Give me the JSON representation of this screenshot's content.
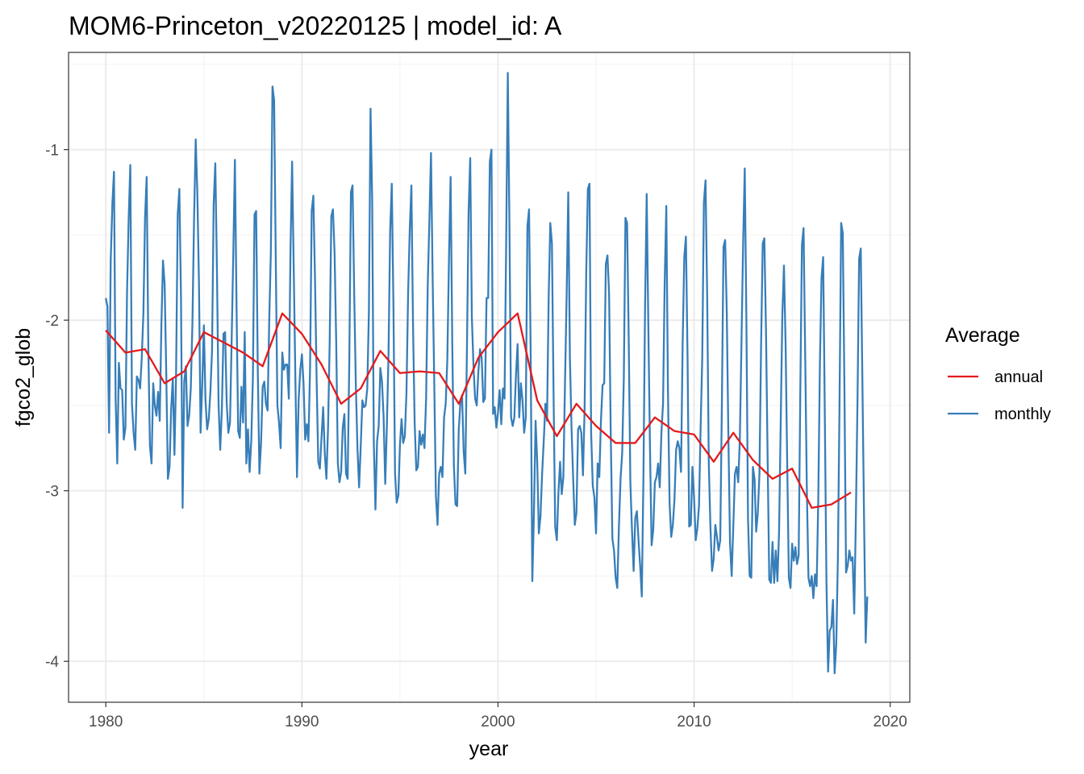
{
  "chart_data": {
    "type": "line",
    "title": "MOM6-Princeton_v20220125 | model_id: A",
    "xlabel": "year",
    "ylabel": "fgco2_glob",
    "xlim": [
      1978.1,
      2021.0
    ],
    "ylim": [
      -4.24,
      -0.43
    ],
    "x_ticks": [
      1980,
      1990,
      2000,
      2010,
      2020
    ],
    "y_ticks": [
      -4,
      -3,
      -2,
      -1
    ],
    "grid": true,
    "legend": {
      "title": "Average",
      "position": "right"
    },
    "series": [
      {
        "name": "annual",
        "color": "#e41a1c",
        "x": [
          1980,
          1981,
          1982,
          1983,
          1984,
          1985,
          1986,
          1987,
          1988,
          1989,
          1990,
          1991,
          1992,
          1993,
          1994,
          1995,
          1996,
          1997,
          1998,
          1999,
          2000,
          2001,
          2002,
          2003,
          2004,
          2005,
          2006,
          2007,
          2008,
          2009,
          2010,
          2011,
          2012,
          2013,
          2014,
          2015,
          2016,
          2017,
          2018
        ],
        "values": [
          -2.06,
          -2.19,
          -2.17,
          -2.37,
          -2.3,
          -2.07,
          -2.13,
          -2.19,
          -2.27,
          -1.96,
          -2.08,
          -2.26,
          -2.49,
          -2.4,
          -2.18,
          -2.31,
          -2.3,
          -2.31,
          -2.49,
          -2.22,
          -2.07,
          -1.96,
          -2.47,
          -2.68,
          -2.49,
          -2.62,
          -2.72,
          -2.72,
          -2.57,
          -2.65,
          -2.67,
          -2.83,
          -2.66,
          -2.82,
          -2.93,
          -2.87,
          -3.1,
          -3.08,
          -3.01
        ]
      },
      {
        "name": "monthly",
        "color": "#377eb8",
        "x_start": 1980.0,
        "x_step": 0.08333333,
        "values": [
          -1.87,
          -1.92,
          -2.66,
          -1.65,
          -1.32,
          -1.13,
          -2.46,
          -2.84,
          -2.25,
          -2.4,
          -2.41,
          -2.7,
          -2.63,
          -1.83,
          -1.4,
          -1.09,
          -2.49,
          -2.66,
          -2.76,
          -2.33,
          -2.35,
          -2.4,
          -2.22,
          -1.96,
          -1.4,
          -1.16,
          -2.15,
          -2.74,
          -2.84,
          -2.37,
          -2.5,
          -2.56,
          -2.42,
          -2.59,
          -2.03,
          -1.65,
          -1.79,
          -2.32,
          -2.93,
          -2.86,
          -2.52,
          -2.34,
          -2.79,
          -2.32,
          -1.38,
          -1.23,
          -1.86,
          -3.1,
          -2.36,
          -2.27,
          -2.62,
          -2.56,
          -2.4,
          -2.02,
          -1.41,
          -0.94,
          -1.25,
          -1.78,
          -2.66,
          -2.38,
          -2.03,
          -2.47,
          -2.64,
          -2.58,
          -2.42,
          -2.18,
          -1.32,
          -1.08,
          -1.7,
          -2.49,
          -2.76,
          -2.53,
          -2.08,
          -2.07,
          -2.49,
          -2.66,
          -2.6,
          -2.12,
          -1.62,
          -1.06,
          -1.92,
          -2.65,
          -2.69,
          -2.39,
          -2.6,
          -2.07,
          -2.84,
          -2.64,
          -2.89,
          -2.71,
          -2.34,
          -1.38,
          -1.36,
          -2.29,
          -2.9,
          -2.72,
          -2.39,
          -2.36,
          -2.49,
          -2.53,
          -2.0,
          -1.6,
          -0.63,
          -0.71,
          -1.64,
          -2.5,
          -2.6,
          -2.75,
          -2.19,
          -2.29,
          -2.26,
          -2.26,
          -2.46,
          -1.6,
          -1.07,
          -1.7,
          -2.34,
          -2.92,
          -2.47,
          -2.29,
          -2.2,
          -2.37,
          -2.7,
          -2.61,
          -2.71,
          -2.28,
          -1.36,
          -1.27,
          -1.75,
          -2.34,
          -2.83,
          -2.87,
          -2.69,
          -2.51,
          -2.78,
          -2.93,
          -2.63,
          -2.13,
          -1.39,
          -1.35,
          -1.61,
          -2.13,
          -2.84,
          -2.95,
          -2.89,
          -2.63,
          -2.55,
          -2.9,
          -2.93,
          -2.24,
          -1.25,
          -1.21,
          -1.84,
          -2.38,
          -2.75,
          -2.98,
          -2.74,
          -2.47,
          -2.51,
          -2.5,
          -2.4,
          -1.95,
          -0.76,
          -1.29,
          -2.72,
          -3.11,
          -2.71,
          -2.62,
          -2.28,
          -2.36,
          -2.57,
          -2.96,
          -2.62,
          -2.2,
          -1.48,
          -1.2,
          -1.9,
          -2.9,
          -3.07,
          -3.03,
          -2.73,
          -2.58,
          -2.72,
          -2.68,
          -2.42,
          -1.84,
          -1.47,
          -1.21,
          -2.03,
          -2.6,
          -2.88,
          -2.86,
          -2.65,
          -2.73,
          -2.67,
          -2.75,
          -2.46,
          -1.8,
          -1.42,
          -1.02,
          -1.75,
          -2.37,
          -3.03,
          -3.2,
          -2.9,
          -2.86,
          -2.92,
          -2.57,
          -2.49,
          -2.23,
          -1.64,
          -1.16,
          -2.12,
          -2.85,
          -3.08,
          -3.09,
          -2.64,
          -2.48,
          -2.44,
          -2.77,
          -2.9,
          -2.16,
          -1.37,
          -1.05,
          -1.98,
          -2.27,
          -2.46,
          -2.5,
          -2.3,
          -2.17,
          -2.22,
          -2.48,
          -2.46,
          -1.87,
          -1.87,
          -1.07,
          -1.0,
          -2.55,
          -2.51,
          -2.63,
          -2.54,
          -2.41,
          -2.61,
          -2.4,
          -2.46,
          -1.55,
          -0.55,
          -1.44,
          -2.57,
          -2.62,
          -2.57,
          -2.32,
          -2.14,
          -2.57,
          -2.37,
          -2.47,
          -2.66,
          -2.57,
          -1.45,
          -1.35,
          -2.19,
          -3.53,
          -3.13,
          -2.59,
          -2.83,
          -3.25,
          -3.15,
          -2.9,
          -2.71,
          -2.49,
          -2.59,
          -1.87,
          -1.43,
          -1.55,
          -2.43,
          -3.21,
          -3.29,
          -3.01,
          -2.83,
          -3.02,
          -2.92,
          -2.37,
          -1.86,
          -1.25,
          -2.22,
          -2.63,
          -2.93,
          -3.2,
          -3.13,
          -2.64,
          -2.62,
          -2.66,
          -2.91,
          -2.52,
          -1.72,
          -1.23,
          -1.2,
          -2.66,
          -2.97,
          -3.04,
          -3.25,
          -2.84,
          -2.92,
          -2.59,
          -2.38,
          -2.37,
          -1.67,
          -1.62,
          -1.85,
          -2.67,
          -3.28,
          -3.35,
          -3.51,
          -3.57,
          -3.21,
          -2.93,
          -2.78,
          -2.34,
          -1.4,
          -1.43,
          -2.11,
          -2.95,
          -3.23,
          -3.47,
          -3.16,
          -3.12,
          -3.29,
          -3.44,
          -3.62,
          -2.92,
          -1.92,
          -1.26,
          -2.04,
          -2.74,
          -3.32,
          -3.23,
          -2.95,
          -2.92,
          -2.84,
          -2.98,
          -2.66,
          -2.49,
          -1.78,
          -1.33,
          -2.41,
          -3.07,
          -3.27,
          -3.2,
          -3.05,
          -2.76,
          -2.71,
          -2.75,
          -2.89,
          -2.14,
          -1.63,
          -1.51,
          -2.22,
          -3.21,
          -3.2,
          -2.86,
          -3.04,
          -3.29,
          -3.22,
          -3.09,
          -2.63,
          -2.22,
          -1.31,
          -1.18,
          -1.85,
          -2.84,
          -3.21,
          -3.47,
          -3.4,
          -3.2,
          -3.27,
          -3.35,
          -3.29,
          -2.5,
          -1.57,
          -1.53,
          -1.95,
          -2.69,
          -3.31,
          -3.5,
          -3.21,
          -2.9,
          -2.86,
          -2.95,
          -2.7,
          -2.13,
          -1.56,
          -1.11,
          -1.99,
          -3.16,
          -3.5,
          -3.51,
          -2.86,
          -2.93,
          -3.24,
          -3.13,
          -2.9,
          -2.15,
          -1.55,
          -1.52,
          -2.06,
          -2.81,
          -3.52,
          -3.54,
          -3.3,
          -3.54,
          -3.35,
          -3.53,
          -3.24,
          -2.61,
          -1.97,
          -1.68,
          -2.14,
          -2.85,
          -3.51,
          -3.57,
          -3.31,
          -3.41,
          -3.33,
          -3.43,
          -3.38,
          -2.42,
          -1.56,
          -1.46,
          -2.21,
          -2.99,
          -3.51,
          -3.56,
          -3.5,
          -3.63,
          -3.49,
          -3.56,
          -3.05,
          -2.25,
          -1.75,
          -1.63,
          -2.56,
          -3.53,
          -4.06,
          -3.82,
          -3.8,
          -3.64,
          -4.07,
          -3.9,
          -3.4,
          -2.49,
          -1.43,
          -1.49,
          -2.4,
          -3.48,
          -3.44,
          -3.35,
          -3.41,
          -3.39,
          -3.72,
          -3.16,
          -2.47,
          -1.64,
          -1.58,
          -2.36,
          -3.15,
          -3.89,
          -3.62
        ]
      }
    ]
  }
}
